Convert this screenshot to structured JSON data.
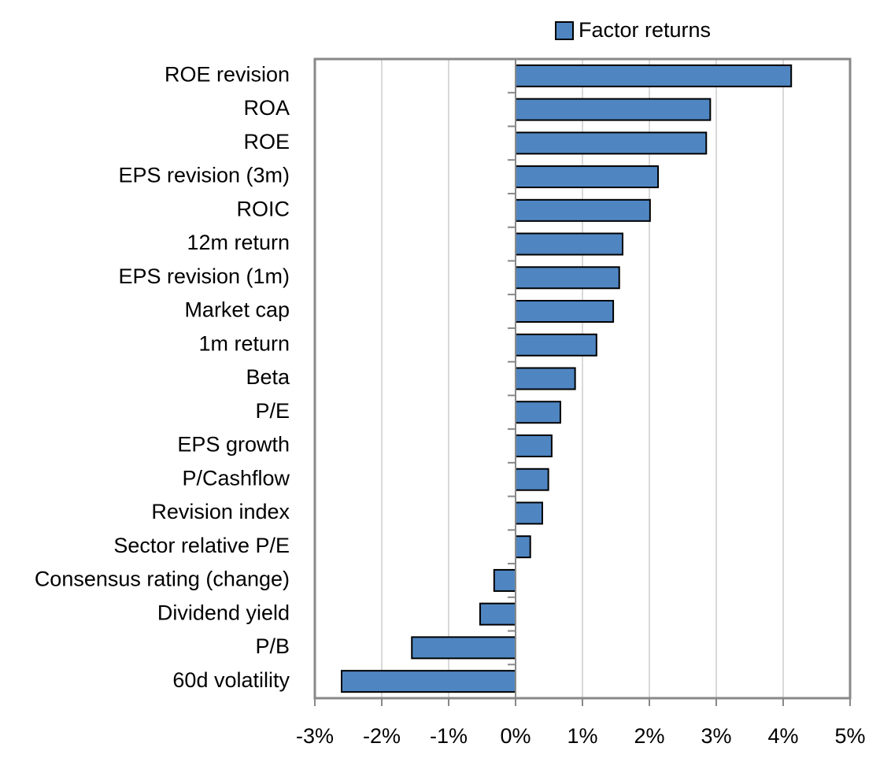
{
  "chart_data": {
    "type": "barh",
    "categories": [
      "ROE revision",
      "ROA",
      "ROE",
      "EPS revision (3m)",
      "ROIC",
      "12m return",
      "EPS revision (1m)",
      "Market cap",
      "1m return",
      "Beta",
      "P/E",
      "EPS growth",
      "P/Cashflow",
      "Revision index",
      "Sector relative P/E",
      "Consensus rating (change)",
      "Dividend yield",
      "P/B",
      "60d volatility"
    ],
    "series": [
      {
        "name": "Factor returns",
        "color": "#4f86c2",
        "values": [
          4.12,
          2.91,
          2.85,
          2.13,
          2.01,
          1.6,
          1.55,
          1.46,
          1.21,
          0.89,
          0.67,
          0.54,
          0.49,
          0.4,
          0.22,
          -0.32,
          -0.53,
          -1.55,
          -2.6
        ]
      }
    ],
    "xlim": [
      -3,
      5
    ],
    "xticks": [
      {
        "value": -3,
        "label": "-3%"
      },
      {
        "value": -2,
        "label": "-2%"
      },
      {
        "value": -1,
        "label": "-1%"
      },
      {
        "value": 0,
        "label": "0%"
      },
      {
        "value": 1,
        "label": "1%"
      },
      {
        "value": 2,
        "label": "2%"
      },
      {
        "value": 3,
        "label": "3%"
      },
      {
        "value": 4,
        "label": "4%"
      },
      {
        "value": 5,
        "label": "5%"
      }
    ],
    "grid": true,
    "legend": "top"
  }
}
